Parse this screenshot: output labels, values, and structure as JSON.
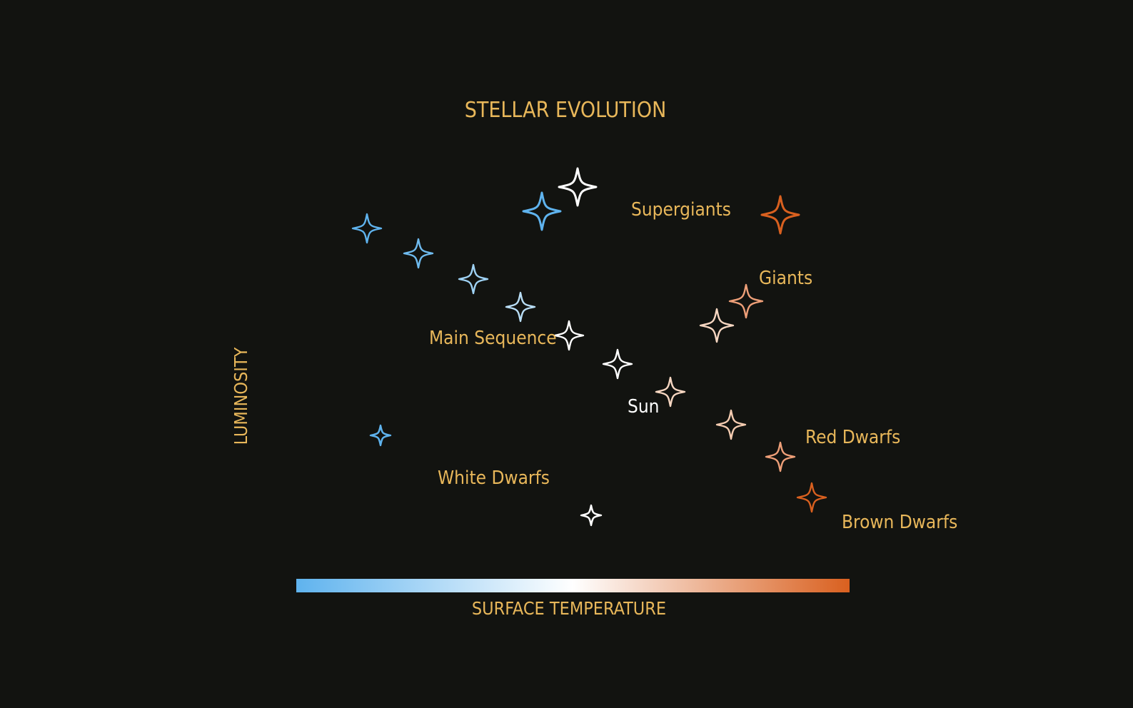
{
  "diagram": {
    "title": "STELLAR EVOLUTION",
    "y_axis_label": "LUMINOSITY",
    "x_axis_label": "SURFACE TEMPERATURE",
    "colors": {
      "background": "#121310",
      "label_gold": "#e8b75a",
      "sun_label": "#ffffff",
      "hot_blue": "#5fb3ee",
      "mid_white": "#ffffff",
      "cool_orange": "#d9601f"
    },
    "regions": [
      {
        "id": "supergiants",
        "label": "Supergiants"
      },
      {
        "id": "giants",
        "label": "Giants"
      },
      {
        "id": "main-sequence",
        "label": "Main Sequence"
      },
      {
        "id": "sun",
        "label": "Sun"
      },
      {
        "id": "red-dwarfs",
        "label": "Red Dwarfs"
      },
      {
        "id": "white-dwarfs",
        "label": "White Dwarfs"
      },
      {
        "id": "brown-dwarfs",
        "label": "Brown Dwarfs"
      }
    ],
    "stars": [
      {
        "group": "main-sequence",
        "color": "#5fb3ee"
      },
      {
        "group": "main-sequence",
        "color": "#6fbbef"
      },
      {
        "group": "main-sequence",
        "color": "#9fd2f4"
      },
      {
        "group": "main-sequence",
        "color": "#b9def6"
      },
      {
        "group": "main-sequence",
        "color": "#ffffff"
      },
      {
        "group": "main-sequence",
        "color": "#ffffff"
      },
      {
        "group": "main-sequence",
        "color": "#f7d7c2"
      },
      {
        "group": "main-sequence",
        "color": "#f3cbb0"
      },
      {
        "group": "main-sequence",
        "color": "#ee9f78"
      },
      {
        "group": "brown-dwarfs",
        "color": "#d9601f"
      },
      {
        "group": "supergiants",
        "color": "#5fb3ee"
      },
      {
        "group": "supergiants",
        "color": "#ffffff"
      },
      {
        "group": "supergiants",
        "color": "#d9601f"
      },
      {
        "group": "giants",
        "color": "#f7d7c2"
      },
      {
        "group": "giants",
        "color": "#ee9f78"
      },
      {
        "group": "white-dwarfs",
        "color": "#5fb3ee"
      },
      {
        "group": "white-dwarfs",
        "color": "#ffffff"
      }
    ],
    "temperature_gradient": [
      "#5fb3ee",
      "#ffffff",
      "#d9601f"
    ]
  }
}
